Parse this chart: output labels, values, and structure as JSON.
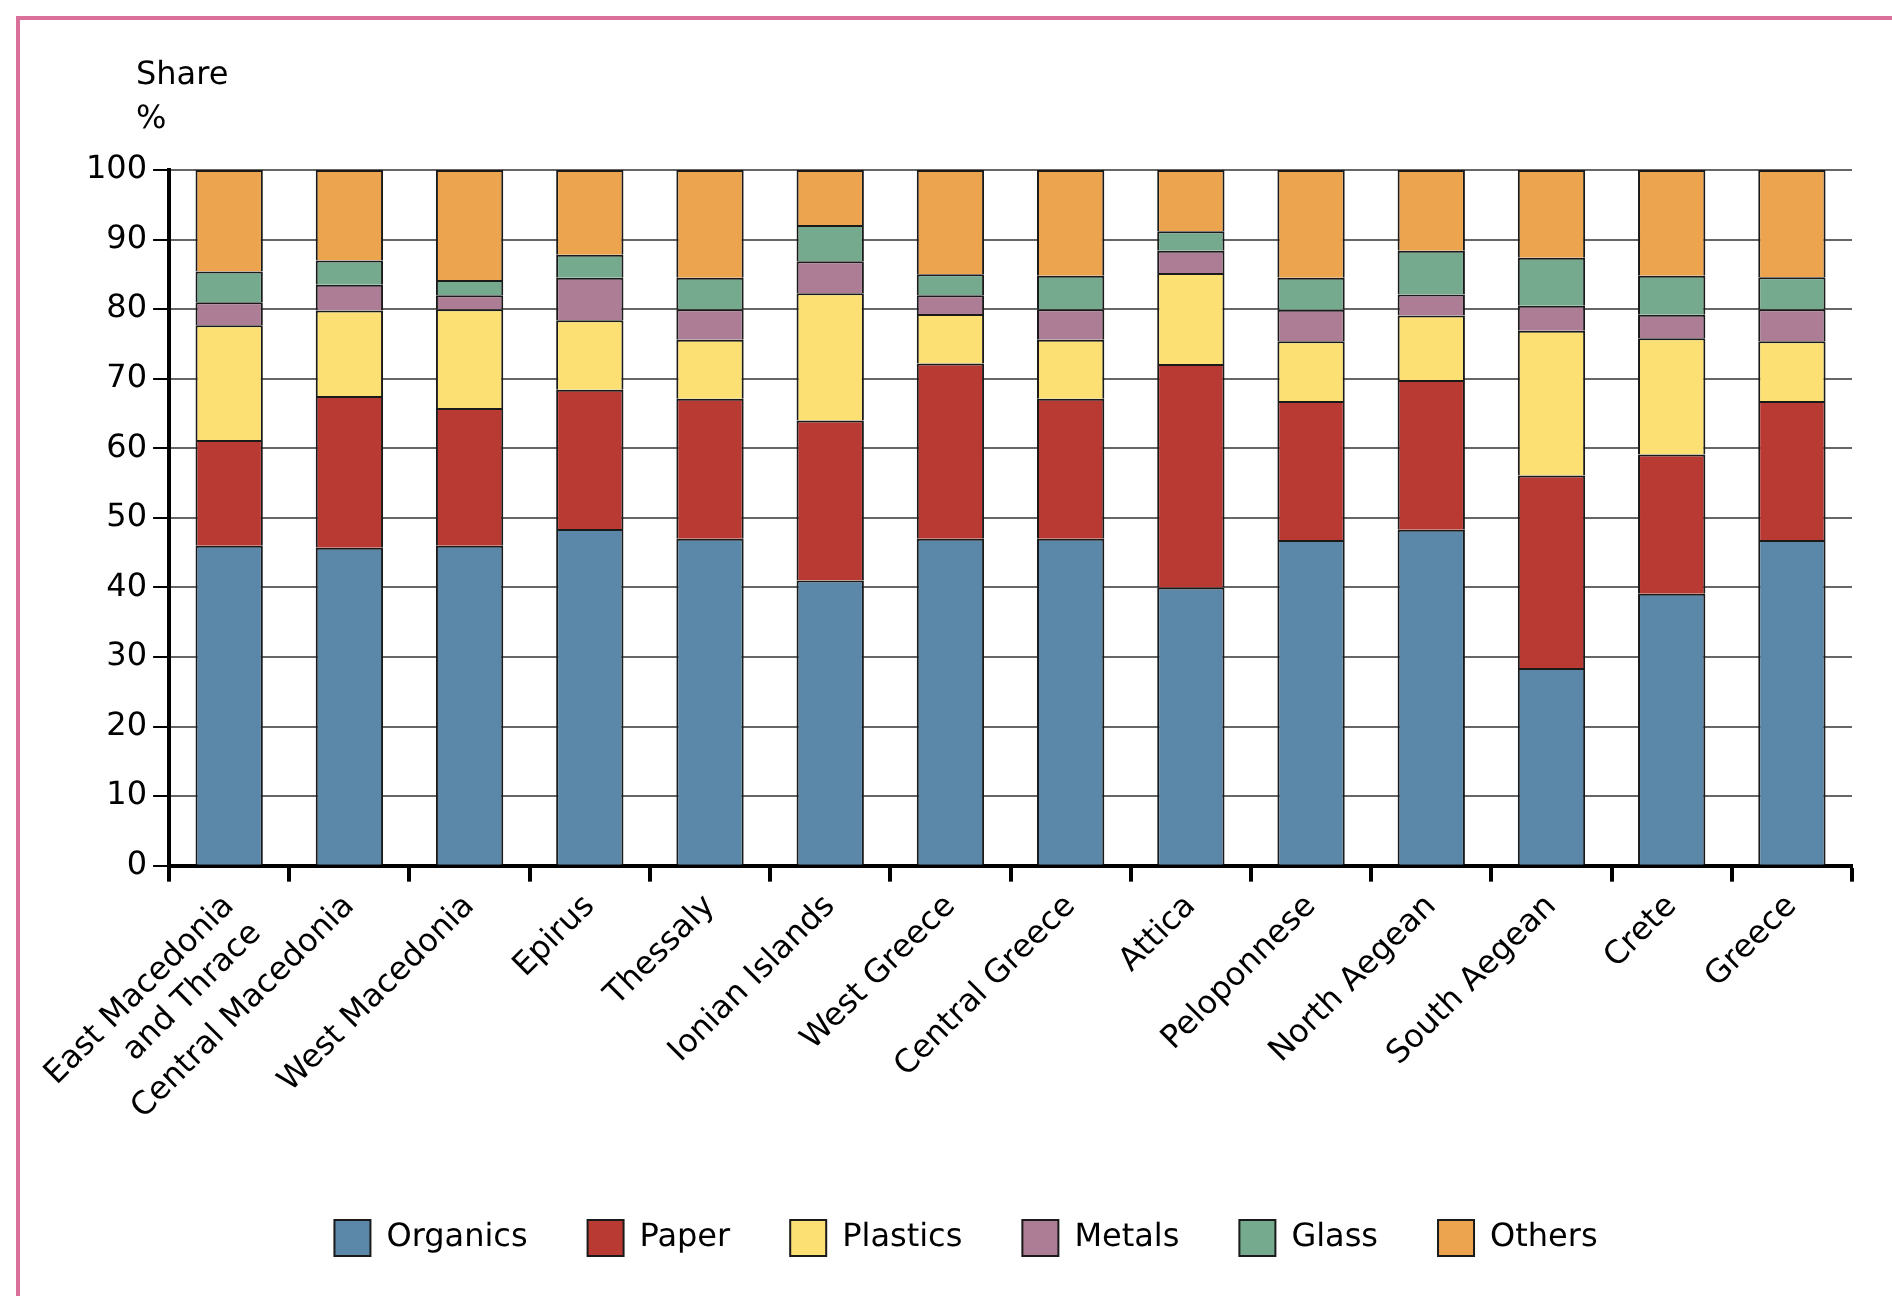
{
  "chart_data": {
    "type": "bar",
    "stacked": true,
    "ylabel": "Share\n%",
    "categories": [
      "East Macedonia\nand Thrace",
      "Central Macedonia",
      "West Macedonia",
      "Epirus",
      "Thessaly",
      "Ionian Islands",
      "West Greece",
      "Central Greece",
      "Attica",
      "Peloponnese",
      "North Aegean",
      "South Aegean",
      "Crete",
      "Greece"
    ],
    "series": [
      {
        "name": "Organics",
        "color": "#5b87a8",
        "values": [
          46,
          45.7,
          46,
          48.4,
          47,
          41,
          47,
          47,
          40,
          46.8,
          48.3,
          28.4,
          39.1,
          46.8
        ]
      },
      {
        "name": "Paper",
        "color": "#b93a33",
        "values": [
          15.2,
          21.8,
          19.8,
          20,
          20.1,
          23,
          25.2,
          20.1,
          32.1,
          20,
          21.5,
          27.7,
          20,
          20
        ]
      },
      {
        "name": "Plastics",
        "color": "#fde073",
        "values": [
          16.5,
          12.3,
          14.2,
          10,
          8.5,
          18.3,
          7.1,
          8.5,
          13.1,
          8.6,
          9.3,
          20.8,
          16.7,
          8.6
        ]
      },
      {
        "name": "Metals",
        "color": "#ad7d96",
        "values": [
          3.3,
          3.7,
          2,
          6.1,
          4.4,
          4.6,
          2.7,
          4.4,
          3.2,
          4.5,
          3,
          3.6,
          3.4,
          4.6
        ]
      },
      {
        "name": "Glass",
        "color": "#76aa8f",
        "values": [
          4.4,
          3.5,
          2.2,
          3.3,
          4.5,
          5.2,
          3,
          4.8,
          2.8,
          4.6,
          6.3,
          6.9,
          5.6,
          4.6
        ]
      },
      {
        "name": "Others",
        "color": "#eda44f",
        "values": [
          14.6,
          13,
          15.8,
          12.2,
          15.5,
          7.9,
          15,
          15.2,
          8.8,
          15.5,
          11.6,
          12.6,
          15.2,
          15.4
        ]
      }
    ],
    "ylim": [
      0,
      100
    ],
    "yticks": [
      0,
      10,
      20,
      30,
      40,
      50,
      60,
      70,
      80,
      90,
      100
    ],
    "grid": "y",
    "legend": "bottom"
  }
}
